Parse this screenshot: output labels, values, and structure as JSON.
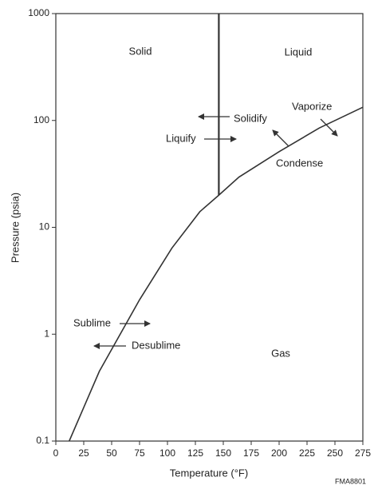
{
  "chart_data": {
    "type": "line",
    "x_label": "Temperature (°F)",
    "y_label": "Pressure (psia)",
    "xlim": [
      0,
      275
    ],
    "xticks": [
      0,
      25,
      50,
      75,
      100,
      125,
      150,
      175,
      200,
      225,
      250,
      275
    ],
    "ylim": [
      0.1,
      1000
    ],
    "yticks": [
      0.1,
      1,
      10,
      100,
      1000
    ],
    "yscale": "log",
    "grid": false,
    "series": [
      {
        "color": "#333333",
        "x": [
          12,
          39,
          75,
          104,
          129,
          146,
          164,
          200,
          236,
          275
        ],
        "values": [
          0.1,
          0.45,
          2.1,
          6.4,
          14,
          20,
          29.5,
          51,
          85,
          133
        ]
      },
      {
        "color": "#333333",
        "x": [
          146,
          146
        ],
        "values": [
          20,
          1000
        ]
      }
    ],
    "annotations": [
      "Solid",
      "Liquid",
      "Solidify",
      "Liquify",
      "Vaporize",
      "Condense",
      "Sublime",
      "Desublime",
      "Gas",
      "FMA8801"
    ]
  }
}
